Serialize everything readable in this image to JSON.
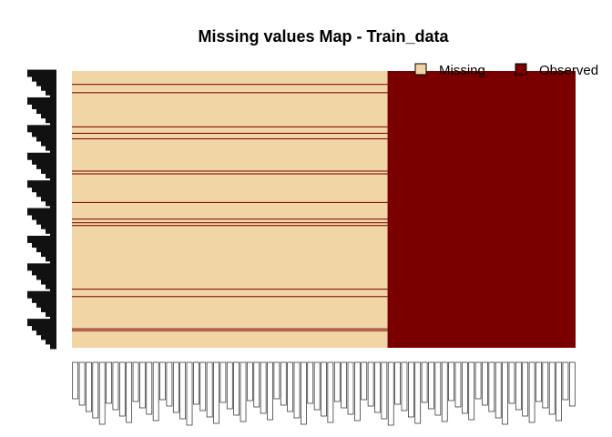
{
  "colors": {
    "missing": "#F2D5A5",
    "observed": "#7A0000",
    "background": "#FFFFFF"
  },
  "chart_data": {
    "type": "heatmap",
    "title": "Missing values Map - Train_data",
    "legend": {
      "position": "top-right",
      "entries": [
        {
          "label": "Missing",
          "color": "#F2D5A5"
        },
        {
          "label": "Observed",
          "color": "#7A0000"
        }
      ]
    },
    "n_columns": 75,
    "n_rows": 300,
    "missing_columns": 47,
    "observed_columns": 28,
    "observed_rows_in_missing_block": [
      14,
      23,
      60,
      67,
      73,
      108,
      111,
      142,
      160,
      164,
      167,
      236,
      244,
      279,
      281
    ]
  }
}
